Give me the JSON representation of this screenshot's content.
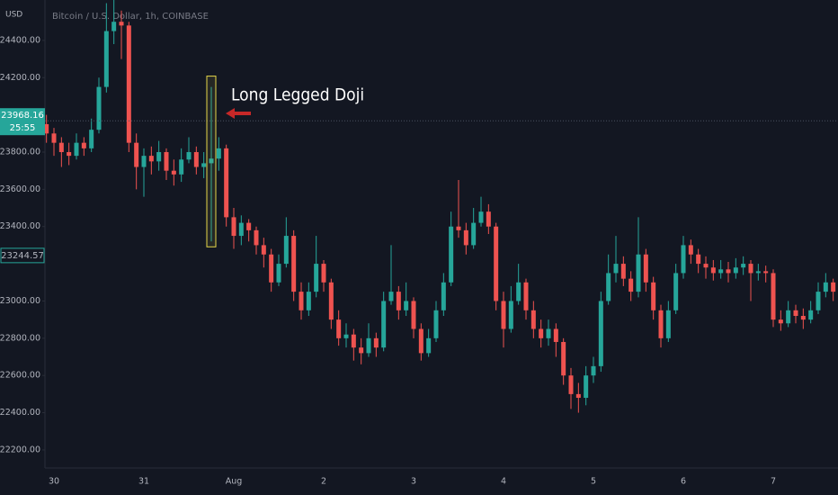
{
  "chart_data": {
    "type": "candlestick",
    "title": "Bitcoin / U.S. Dollar, 1h, COINBASE",
    "y_unit": "USD",
    "annotation": "Long Legged Doji",
    "up_color": "#26a69a",
    "down_color": "#ef5350",
    "ylim": [
      22103,
      24617
    ],
    "yticks": [
      {
        "value": 24400,
        "label": "24400.00"
      },
      {
        "value": 24200,
        "label": "24200.00"
      },
      {
        "value": 23800,
        "label": "23800.00"
      },
      {
        "value": 23600,
        "label": "23600.00"
      },
      {
        "value": 23400,
        "label": "23400.00"
      },
      {
        "value": 23000,
        "label": "23000.00"
      },
      {
        "value": 22800,
        "label": "22800.00"
      },
      {
        "value": 22600,
        "label": "22600.00"
      },
      {
        "value": 22400,
        "label": "22400.00"
      },
      {
        "value": 22200,
        "label": "22200.00"
      }
    ],
    "grid": false,
    "price_labels": [
      {
        "value": 23968.16,
        "timer": "25:55"
      },
      {
        "value": 23244.57
      }
    ],
    "categories": [
      null,
      "30",
      null,
      null,
      null,
      null,
      null,
      null,
      null,
      null,
      null,
      null,
      null,
      "31",
      null,
      null,
      null,
      null,
      null,
      null,
      null,
      null,
      null,
      null,
      null,
      "Aug",
      null,
      null,
      null,
      null,
      null,
      null,
      null,
      null,
      null,
      null,
      null,
      "2",
      null,
      null,
      null,
      null,
      null,
      null,
      null,
      null,
      null,
      null,
      null,
      "3",
      null,
      null,
      null,
      null,
      null,
      null,
      null,
      null,
      null,
      null,
      null,
      "4",
      null,
      null,
      null,
      null,
      null,
      null,
      null,
      null,
      null,
      null,
      null,
      "5",
      null,
      null,
      null,
      null,
      null,
      null,
      null,
      null,
      null,
      null,
      null,
      "6",
      null,
      null,
      null,
      null,
      null,
      null,
      null,
      null,
      null,
      null,
      null,
      "7",
      null,
      null,
      null,
      null,
      null,
      null,
      null,
      null
    ],
    "open": [
      23950,
      23900,
      23850,
      23800,
      23780,
      23850,
      23820,
      23920,
      24150,
      24450,
      24500,
      24480,
      23850,
      23720,
      23780,
      23750,
      23800,
      23700,
      23680,
      23760,
      23800,
      23720,
      23740,
      23765,
      23820,
      23450,
      23350,
      23420,
      23380,
      23300,
      23250,
      23100,
      23200,
      23350,
      23050,
      22950,
      23050,
      23200,
      23100,
      22900,
      22800,
      22820,
      22750,
      22720,
      22800,
      22750,
      23000,
      23050,
      22950,
      23000,
      22850,
      22720,
      22800,
      22950,
      23100,
      23400,
      23380,
      23300,
      23420,
      23480,
      23400,
      23000,
      22850,
      23000,
      23100,
      22950,
      22850,
      22800,
      22850,
      22780,
      22600,
      22500,
      22480,
      22600,
      22650,
      23000,
      23150,
      23200,
      23120,
      23050,
      23250,
      23100,
      22950,
      22800,
      22950,
      23150,
      23300,
      23250,
      23200,
      23180,
      23150,
      23170,
      23150,
      23180,
      23200,
      23150,
      23160,
      23150,
      22900,
      22880,
      22950,
      22920,
      22900,
      22950,
      23050,
      23100
    ],
    "high": [
      24000,
      23930,
      23880,
      23850,
      23900,
      23880,
      23980,
      24200,
      24600,
      24620,
      24560,
      24500,
      23900,
      23820,
      23830,
      23860,
      23820,
      23760,
      23820,
      23880,
      23830,
      23800,
      24150,
      23880,
      23840,
      23500,
      23460,
      23440,
      23400,
      23340,
      23280,
      23250,
      23450,
      23380,
      23100,
      23100,
      23350,
      23220,
      23120,
      22950,
      22880,
      22850,
      22800,
      22880,
      22830,
      23050,
      23300,
      23080,
      23100,
      23020,
      22880,
      22850,
      23000,
      23150,
      23480,
      23650,
      23420,
      23500,
      23560,
      23520,
      23420,
      23050,
      23080,
      23200,
      23120,
      23000,
      22900,
      22900,
      22880,
      22800,
      22640,
      22560,
      22650,
      22700,
      23050,
      23250,
      23350,
      23240,
      23160,
      23450,
      23280,
      23130,
      22980,
      23000,
      23200,
      23350,
      23330,
      23280,
      23240,
      23220,
      23220,
      23210,
      23230,
      23240,
      23220,
      23200,
      23190,
      23170,
      22950,
      23000,
      22980,
      22960,
      23000,
      23100,
      23150,
      23120
    ],
    "low": [
      23850,
      23780,
      23720,
      23730,
      23760,
      23780,
      23800,
      23900,
      24120,
      24380,
      24300,
      23800,
      23600,
      23560,
      23680,
      23700,
      23650,
      23620,
      23640,
      23740,
      23680,
      23660,
      23320,
      23700,
      23400,
      23280,
      23300,
      23320,
      23250,
      23180,
      23050,
      23080,
      23180,
      23000,
      22900,
      22920,
      23020,
      23050,
      22850,
      22760,
      22750,
      22680,
      22660,
      22700,
      22700,
      22730,
      22980,
      22900,
      22920,
      22800,
      22680,
      22700,
      22780,
      22920,
      23080,
      23340,
      23250,
      23280,
      23400,
      23360,
      22950,
      22750,
      22830,
      22980,
      22900,
      22800,
      22750,
      22760,
      22700,
      22550,
      22420,
      22400,
      22440,
      22560,
      22620,
      22980,
      23100,
      23080,
      23000,
      23020,
      23050,
      22900,
      22750,
      22780,
      22930,
      23120,
      23200,
      23150,
      23120,
      23110,
      23120,
      23100,
      23120,
      23140,
      23000,
      23110,
      23100,
      22860,
      22840,
      22860,
      22880,
      22850,
      22880,
      22930,
      23020,
      23000
    ],
    "close": [
      23900,
      23850,
      23800,
      23780,
      23850,
      23820,
      23920,
      24150,
      24450,
      24500,
      24480,
      23850,
      23720,
      23780,
      23750,
      23800,
      23700,
      23680,
      23760,
      23800,
      23720,
      23740,
      23765,
      23820,
      23450,
      23350,
      23420,
      23380,
      23300,
      23250,
      23100,
      23200,
      23350,
      23050,
      22950,
      23050,
      23200,
      23100,
      22900,
      22800,
      22820,
      22750,
      22720,
      22800,
      22750,
      23000,
      23050,
      22950,
      23000,
      22850,
      22720,
      22800,
      22950,
      23100,
      23400,
      23380,
      23300,
      23420,
      23480,
      23400,
      23000,
      22850,
      23000,
      23100,
      22950,
      22850,
      22800,
      22850,
      22780,
      22600,
      22500,
      22480,
      22600,
      22650,
      23000,
      23150,
      23200,
      23120,
      23050,
      23250,
      23100,
      22950,
      22800,
      22950,
      23150,
      23300,
      23250,
      23200,
      23180,
      23150,
      23170,
      23150,
      23180,
      23200,
      23150,
      23160,
      23150,
      22900,
      22880,
      22950,
      22920,
      22900,
      22950,
      23050,
      23100,
      23050
    ]
  }
}
